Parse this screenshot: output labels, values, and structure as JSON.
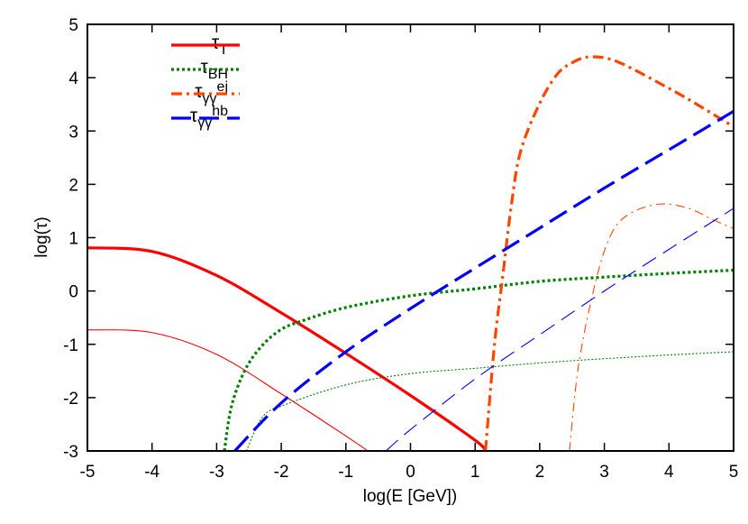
{
  "chart_data": {
    "type": "line",
    "title": "",
    "xlabel": "log(E [GeV])",
    "ylabel": "log(τ)",
    "xlim": [
      -5,
      5
    ],
    "ylim": [
      -3,
      5
    ],
    "xticks": [
      "-5",
      "-4",
      "-3",
      "-2",
      "-1",
      "0",
      "1",
      "2",
      "3",
      "4",
      "5"
    ],
    "yticks": [
      "-3",
      "-2",
      "-1",
      "0",
      "1",
      "2",
      "3",
      "4",
      "5"
    ],
    "grid": false,
    "legend_position": "top-left",
    "legend": [
      {
        "base": "τ",
        "sub": "T",
        "sup": ""
      },
      {
        "base": "τ",
        "sub": "BH",
        "sup": ""
      },
      {
        "base": "τ",
        "sub": "γγ",
        "sup": "ej"
      },
      {
        "base": "τ",
        "sub": "γγ",
        "sup": "hb"
      }
    ],
    "series": [
      {
        "name": "τT",
        "style": "solid",
        "weight": "thick",
        "color": "#ff0000",
        "x": [
          -5,
          -4,
          -3,
          -2,
          -1,
          0,
          1,
          1.16
        ],
        "y": [
          0.81,
          0.74,
          0.29,
          -0.41,
          -1.17,
          -1.96,
          -2.8,
          -3
        ]
      },
      {
        "style": "solid",
        "weight": "thin",
        "color": "#ff0000",
        "x": [
          -5,
          -4,
          -3,
          -2,
          -1,
          -0.66
        ],
        "y": [
          -0.73,
          -0.78,
          -1.19,
          -1.93,
          -2.72,
          -3
        ]
      },
      {
        "name": "τBH",
        "style": "dotted",
        "weight": "thick",
        "color": "#008000",
        "x": [
          -2.88,
          -2.77,
          -2.56,
          -2.3,
          -2,
          -1.65,
          -1,
          0,
          1,
          2,
          3,
          4,
          5
        ],
        "y": [
          -3,
          -2.16,
          -1.48,
          -1.03,
          -0.72,
          -0.55,
          -0.31,
          -0.09,
          0.04,
          0.18,
          0.26,
          0.33,
          0.39
        ]
      },
      {
        "style": "dotted",
        "weight": "thin",
        "color": "#008000",
        "x": [
          -2.54,
          -2.3,
          -2,
          -1,
          0,
          1,
          2,
          3,
          4,
          5
        ],
        "y": [
          -3,
          -2.38,
          -2.16,
          -1.76,
          -1.55,
          -1.45,
          -1.35,
          -1.27,
          -1.2,
          -1.14
        ]
      },
      {
        "name": "τγγej",
        "style": "dashdot",
        "weight": "thick",
        "color": "#ff4500",
        "x": [
          1.16,
          1.3,
          1.42,
          1.56,
          1.7,
          1.98,
          2.26,
          2.5,
          2.78,
          3.2,
          4,
          4.5,
          5
        ],
        "y": [
          -3,
          -1,
          0.2,
          1.6,
          2.6,
          3.47,
          4.05,
          4.28,
          4.39,
          4.3,
          3.8,
          3.45,
          3.08
        ]
      },
      {
        "style": "dashdot",
        "weight": "thin",
        "color": "#ff4500",
        "x": [
          2.46,
          2.6,
          2.86,
          3.1,
          3.38,
          3.85,
          4.3,
          4.69,
          5
        ],
        "y": [
          -3,
          -1.4,
          0.15,
          1.05,
          1.44,
          1.63,
          1.55,
          1.33,
          1.17
        ]
      },
      {
        "name": "τγγhb",
        "style": "dashed",
        "weight": "thick",
        "color": "#0000ff",
        "x": [
          -2.72,
          -2,
          -1,
          0,
          1,
          2,
          3,
          4,
          5
        ],
        "y": [
          -3,
          -2.1,
          -1.14,
          -0.33,
          0.43,
          1.18,
          1.93,
          2.65,
          3.37
        ]
      },
      {
        "style": "dashed",
        "weight": "thin",
        "color": "#0000ff",
        "x": [
          -0.38,
          0,
          1,
          2,
          3,
          4,
          5
        ],
        "y": [
          -3,
          -2.6,
          -1.65,
          -0.82,
          0,
          0.78,
          1.55
        ]
      }
    ]
  }
}
